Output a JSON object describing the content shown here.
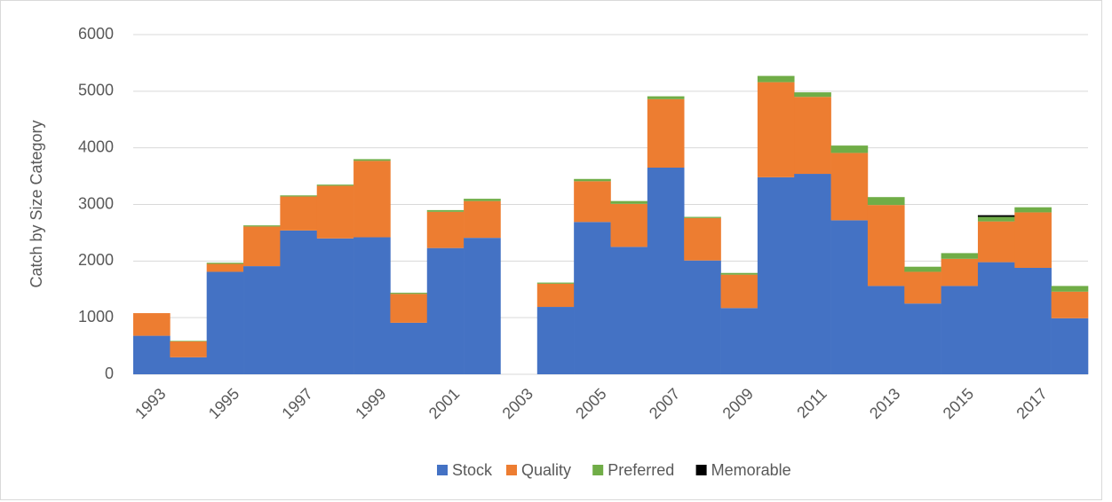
{
  "chart_data": {
    "type": "stacked-bar",
    "y_label": "Catch by Size Category",
    "categories": [
      "1993",
      null,
      "1995",
      null,
      "1997",
      null,
      "1999",
      null,
      "2001",
      null,
      "2003",
      null,
      "2005",
      null,
      "2007",
      null,
      "2009",
      null,
      "2011",
      null,
      "2013",
      null,
      "2015",
      null,
      "2017",
      null
    ],
    "series": [
      {
        "name": "Stock",
        "color": "#4472c4",
        "values": [
          680,
          300,
          1810,
          1910,
          2540,
          2400,
          2420,
          910,
          2230,
          2410,
          null,
          1190,
          2690,
          2250,
          3650,
          2010,
          1170,
          3480,
          3540,
          2720,
          1560,
          1250,
          1560,
          1980,
          1880,
          990
        ]
      },
      {
        "name": "Quality",
        "color": "#ed7d31",
        "values": [
          400,
          280,
          140,
          700,
          600,
          930,
          1350,
          510,
          640,
          650,
          null,
          410,
          720,
          760,
          1210,
          750,
          590,
          1680,
          1360,
          1190,
          1430,
          560,
          480,
          720,
          980,
          470
        ]
      },
      {
        "name": "Preferred",
        "color": "#70ad47",
        "values": [
          0,
          10,
          20,
          20,
          20,
          20,
          30,
          20,
          30,
          40,
          null,
          20,
          40,
          50,
          50,
          20,
          30,
          110,
          80,
          130,
          140,
          90,
          100,
          80,
          90,
          100
        ]
      },
      {
        "name": "Memorable",
        "color": "#000000",
        "values": [
          0,
          0,
          0,
          0,
          0,
          0,
          0,
          0,
          0,
          0,
          null,
          0,
          0,
          0,
          0,
          0,
          0,
          0,
          0,
          0,
          0,
          0,
          0,
          30,
          0,
          0
        ]
      }
    ],
    "ylim": [
      0,
      6000
    ],
    "yticks": [
      0,
      1000,
      2000,
      3000,
      4000,
      5000,
      6000
    ],
    "grid": true,
    "legend": "bottom"
  }
}
